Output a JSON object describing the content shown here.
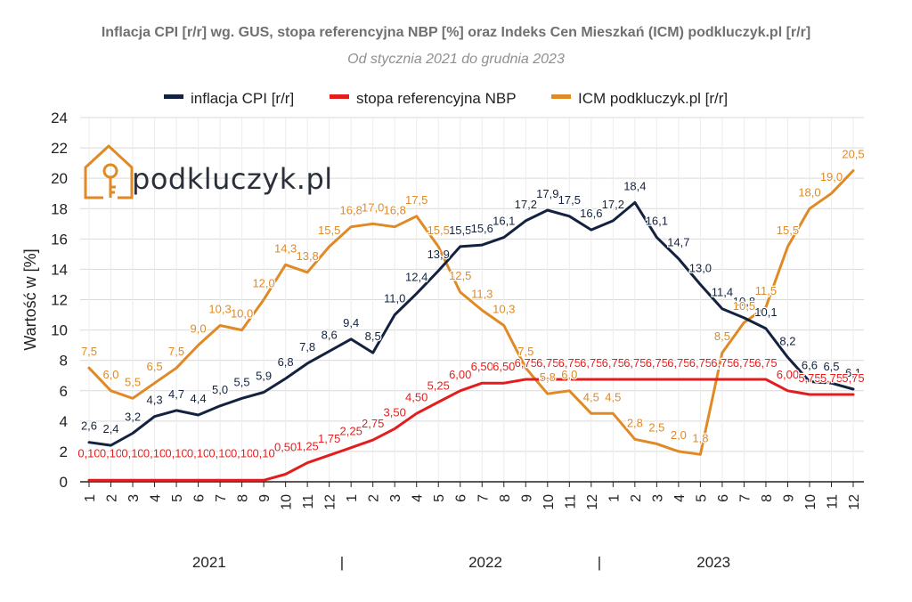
{
  "chart_data": {
    "type": "line",
    "title": "Inflacja CPI [r/r] wg. GUS, stopa referencyjna NBP [%] oraz Indeks Cen Mieszkań (ICM) podkluczyk.pl [r/r]",
    "subtitle": "Od stycznia 2021 do grudnia 2023",
    "ylabel": "Wartość w [%]",
    "ylim": [
      0,
      24
    ],
    "yticks": [
      0,
      2,
      4,
      6,
      8,
      10,
      12,
      14,
      16,
      18,
      20,
      22,
      24
    ],
    "grid": true,
    "legend_position": "top",
    "x": [
      "1",
      "2",
      "3",
      "4",
      "5",
      "6",
      "7",
      "8",
      "9",
      "10",
      "11",
      "12",
      "1",
      "2",
      "3",
      "4",
      "5",
      "6",
      "7",
      "8",
      "9",
      "10",
      "11",
      "12",
      "1",
      "2",
      "3",
      "4",
      "5",
      "6",
      "7",
      "8",
      "9",
      "10",
      "11",
      "12"
    ],
    "years": [
      "2021",
      "2022",
      "2023"
    ],
    "year_separator": "|",
    "series": [
      {
        "name": "inflacja CPI [r/r]",
        "color": "#13233f",
        "values": [
          2.6,
          2.4,
          3.2,
          4.3,
          4.7,
          4.4,
          5.0,
          5.5,
          5.9,
          6.8,
          7.8,
          8.6,
          9.4,
          8.5,
          11.0,
          12.4,
          13.9,
          15.5,
          15.6,
          16.1,
          17.2,
          17.9,
          17.5,
          16.6,
          17.2,
          18.4,
          16.1,
          14.7,
          13.0,
          11.4,
          10.8,
          10.1,
          8.2,
          6.6,
          6.5,
          6.1
        ],
        "labels": [
          "2,6",
          "2,4",
          "3,2",
          "4,3",
          "4,7",
          "4,4",
          "5,0",
          "5,5",
          "5,9",
          "6,8",
          "7,8",
          "8,6",
          "9,4",
          "8,5",
          "11,0",
          "12,4",
          "13,9",
          "15,5",
          "15,6",
          "16,1",
          "17,2",
          "17,9",
          "17,5",
          "16,6",
          "17,2",
          "18,4",
          "16,1",
          "14,7",
          "13,0",
          "11,4",
          "10,8",
          "10,1",
          "8,2",
          "6,6",
          "6,5",
          "6,1"
        ]
      },
      {
        "name": "stopa referencyjna NBP",
        "color": "#e31d1d",
        "values": [
          0.1,
          0.1,
          0.1,
          0.1,
          0.1,
          0.1,
          0.1,
          0.1,
          0.1,
          0.5,
          1.25,
          1.75,
          2.25,
          2.75,
          3.5,
          4.5,
          5.25,
          6.0,
          6.5,
          6.5,
          6.75,
          6.75,
          6.75,
          6.75,
          6.75,
          6.75,
          6.75,
          6.75,
          6.75,
          6.75,
          6.75,
          6.75,
          6.0,
          5.75,
          5.75,
          5.75
        ],
        "labels": [
          "0,10",
          "0,10",
          "0,10",
          "0,10",
          "0,10",
          "0,10",
          "0,10",
          "0,10",
          "0,10",
          "0,50",
          "1,25",
          "1,75",
          "2,25",
          "2,75",
          "3,50",
          "4,50",
          "5,25",
          "6,00",
          "6,50",
          "6,50",
          "6,75",
          "6,75",
          "6,75",
          "6,75",
          "6,75",
          "6,75",
          "6,75",
          "6,75",
          "6,75",
          "6,75",
          "6,75",
          "6,75",
          "6,00",
          "5,75",
          "5,75",
          "5,75"
        ]
      },
      {
        "name": "ICM podkluczyk.pl [r/r]",
        "color": "#e08a26",
        "values": [
          7.5,
          6.0,
          5.5,
          6.5,
          7.5,
          9.0,
          10.3,
          10.0,
          12.0,
          14.3,
          13.8,
          15.5,
          16.8,
          17.0,
          16.8,
          17.5,
          15.5,
          12.5,
          11.3,
          10.3,
          7.5,
          5.8,
          6.0,
          4.5,
          4.5,
          2.8,
          2.5,
          2.0,
          1.8,
          8.5,
          10.5,
          11.5,
          15.5,
          18.0,
          19.0,
          20.5
        ],
        "labels": [
          "7,5",
          "6,0",
          "5,5",
          "6,5",
          "7,5",
          "9,0",
          "10,3",
          "10,0",
          "12,0",
          "14,3",
          "13,8",
          "15,5",
          "16,8",
          "17,0",
          "16,8",
          "17,5",
          "15,5",
          "12,5",
          "11,3",
          "10,3",
          "7,5",
          "5,8",
          "6,0",
          "4,5",
          "4,5",
          "2,8",
          "2,5",
          "2,0",
          "1,8",
          "8,5",
          "10,5",
          "11,5",
          "15,5",
          "18,0",
          "19,0",
          "20,5"
        ]
      }
    ]
  },
  "logo": {
    "text": "podkluczyk.pl",
    "color": "#e08a26",
    "icon": "house-key-icon"
  },
  "colors": {
    "grid": "#d9d9d9",
    "axis": "#222222",
    "title": "#707070",
    "subtitle": "#909090"
  }
}
